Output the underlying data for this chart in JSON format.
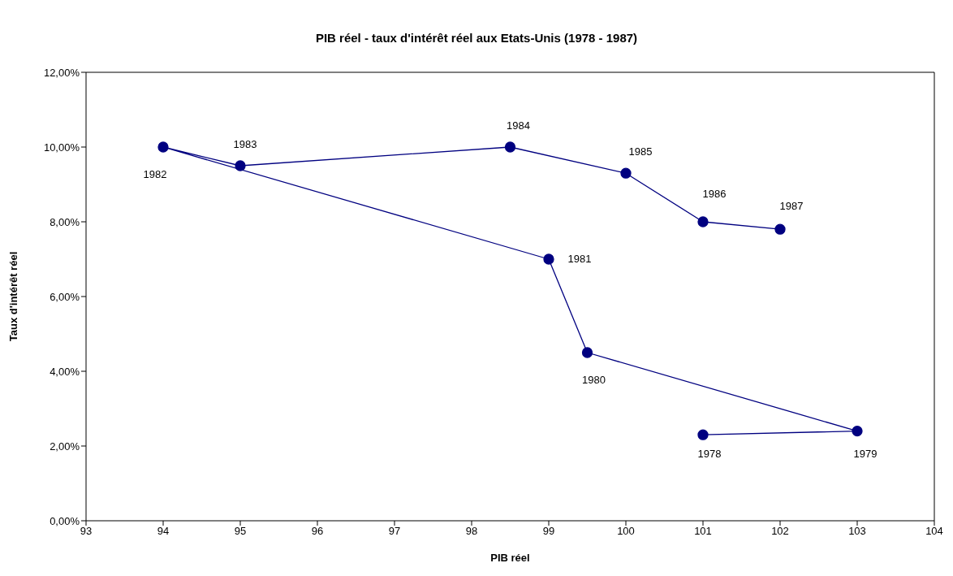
{
  "chart_data": {
    "type": "line",
    "title": "PIB réel - taux d'intérêt réel aux Etats-Unis (1978 - 1987)",
    "xlabel": "PIB réel",
    "ylabel": "Taux d'intérêt réel",
    "x": [
      101,
      103,
      99.5,
      99,
      94,
      95,
      98.5,
      100,
      101,
      102
    ],
    "series": [
      {
        "color": "#000080",
        "values": [
          2.3,
          2.4,
          4.5,
          7.0,
          10.0,
          9.5,
          10.0,
          9.3,
          8.0,
          7.8
        ]
      }
    ],
    "xlim": [
      93,
      104
    ],
    "xticks": [
      93,
      94,
      95,
      96,
      97,
      98,
      99,
      100,
      101,
      102,
      103,
      104
    ],
    "ylim": [
      0,
      12
    ],
    "yticks": [
      {
        "value": 0,
        "label": "0,00%"
      },
      {
        "value": 2,
        "label": "2,00%"
      },
      {
        "value": 4,
        "label": "4,00%"
      },
      {
        "value": 6,
        "label": "6,00%"
      },
      {
        "value": 8,
        "label": "8,00%"
      },
      {
        "value": 10,
        "label": "10,00%"
      },
      {
        "value": 12,
        "label": "12,00%"
      }
    ],
    "annotations": [
      {
        "text": "1978",
        "x": 101,
        "y": 2.3
      },
      {
        "text": "1979",
        "x": 103,
        "y": 2.4
      },
      {
        "text": "1980",
        "x": 99.5,
        "y": 4.5
      },
      {
        "text": "1981",
        "x": 99,
        "y": 7.0
      },
      {
        "text": "1982",
        "x": 94,
        "y": 10.0
      },
      {
        "text": "1983",
        "x": 95,
        "y": 9.5
      },
      {
        "text": "1984",
        "x": 98.5,
        "y": 10.0
      },
      {
        "text": "1985",
        "x": 100,
        "y": 9.3
      },
      {
        "text": "1986",
        "x": 101,
        "y": 8.0
      },
      {
        "text": "1987",
        "x": 102,
        "y": 7.8
      }
    ],
    "grid": false,
    "legend": false,
    "marker": "circle",
    "line_style": "solid"
  }
}
